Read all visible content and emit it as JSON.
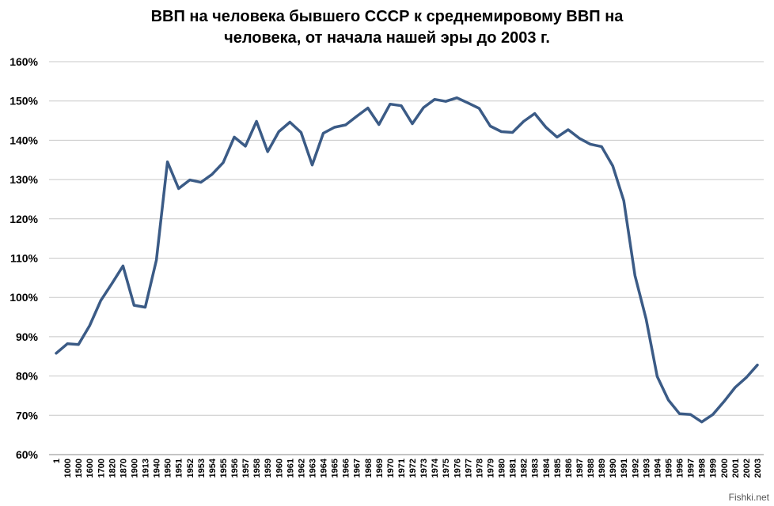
{
  "chart_data": {
    "type": "line",
    "title_lines": [
      "ВВП на человека бывшего СССР к среднемировому ВВП на",
      "человека, от начала нашей эры до 2003 г."
    ],
    "xlabel": "",
    "ylabel": "",
    "ylim": [
      60,
      160
    ],
    "yticks": [
      "60%",
      "70%",
      "80%",
      "90%",
      "100%",
      "110%",
      "120%",
      "130%",
      "140%",
      "150%",
      "160%"
    ],
    "ytick_values": [
      60,
      70,
      80,
      90,
      100,
      110,
      120,
      130,
      140,
      150,
      160
    ],
    "grid": true,
    "line_color": "#3b5b86",
    "categories": [
      "1",
      "1000",
      "1500",
      "1600",
      "1700",
      "1820",
      "1870",
      "1900",
      "1913",
      "1940",
      "1950",
      "1951",
      "1952",
      "1953",
      "1954",
      "1955",
      "1956",
      "1957",
      "1958",
      "1959",
      "1960",
      "1961",
      "1962",
      "1963",
      "1964",
      "1965",
      "1966",
      "1967",
      "1968",
      "1969",
      "1970",
      "1971",
      "1972",
      "1973",
      "1974",
      "1975",
      "1976",
      "1977",
      "1978",
      "1979",
      "1980",
      "1981",
      "1982",
      "1983",
      "1984",
      "1985",
      "1986",
      "1987",
      "1988",
      "1989",
      "1990",
      "1991",
      "1992",
      "1993",
      "1994",
      "1995",
      "1996",
      "1997",
      "1998",
      "1999",
      "2000",
      "2001",
      "2002",
      "2003"
    ],
    "values": [
      85.8,
      88.2,
      88.0,
      92.8,
      99.2,
      103.5,
      108.0,
      98.0,
      97.5,
      109.5,
      134.5,
      127.7,
      129.9,
      129.3,
      131.3,
      134.3,
      140.8,
      138.5,
      144.8,
      137.1,
      142.2,
      144.6,
      142.0,
      133.7,
      141.8,
      143.3,
      143.9,
      146.1,
      148.2,
      144.0,
      149.2,
      148.8,
      144.2,
      148.3,
      150.4,
      149.9,
      150.8,
      149.5,
      148.1,
      143.6,
      142.2,
      142.0,
      144.8,
      146.8,
      143.3,
      140.8,
      142.7,
      140.5,
      139.0,
      138.4,
      133.5,
      124.6,
      105.6,
      94.5,
      79.9,
      73.9,
      70.4,
      70.2,
      68.3,
      70.2,
      73.5,
      77.1,
      79.6,
      82.8
    ]
  },
  "watermark": "Fishki.net"
}
